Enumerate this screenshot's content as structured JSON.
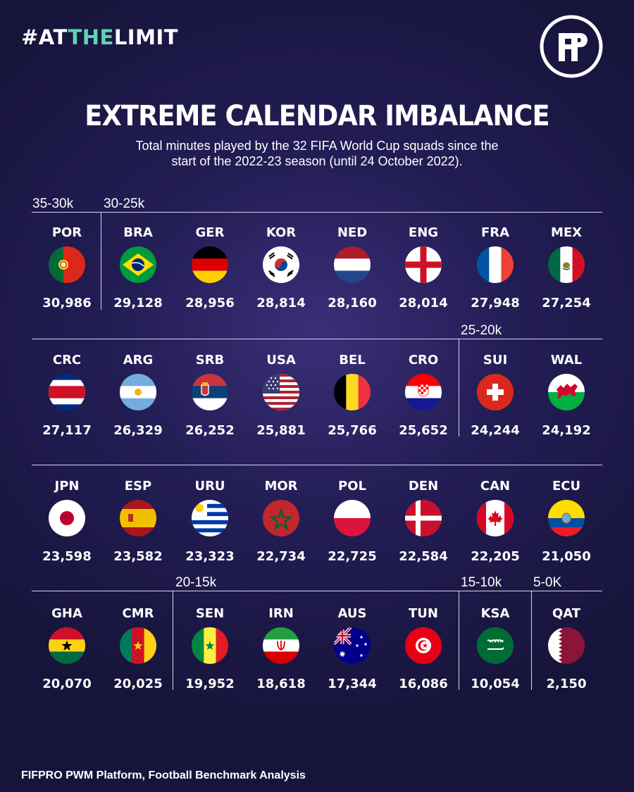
{
  "header": {
    "hashtag_prefix": "#AT",
    "hashtag_accent": "THE",
    "hashtag_suffix": "LIMIT",
    "logo_text": "FF"
  },
  "title": "EXTREME CALENDAR IMBALANCE",
  "subtitle_line1": "Total minutes played by the 32 FIFA World Cup squads since the",
  "subtitle_line2": "start of the 2022-23 season (until 24 October 2022).",
  "source": "FIFPRO PWM Platform, Football Benchmark Analysis",
  "colors": {
    "accent": "#5fd3b3",
    "background": "#231d55",
    "text": "#ffffff"
  },
  "chart_data": {
    "type": "table",
    "title": "EXTREME CALENDAR IMBALANCE",
    "ranges": [
      "35-30k",
      "30-25k",
      "25-20k",
      "20-15k",
      "15-10k",
      "5-0K"
    ],
    "teams": [
      {
        "code": "POR",
        "minutes": 30986,
        "label": "30,986",
        "range": "35-30k"
      },
      {
        "code": "BRA",
        "minutes": 29128,
        "label": "29,128",
        "range": "30-25k"
      },
      {
        "code": "GER",
        "minutes": 28956,
        "label": "28,956",
        "range": "30-25k"
      },
      {
        "code": "KOR",
        "minutes": 28814,
        "label": "28,814",
        "range": "30-25k"
      },
      {
        "code": "NED",
        "minutes": 28160,
        "label": "28,160",
        "range": "30-25k"
      },
      {
        "code": "ENG",
        "minutes": 28014,
        "label": "28,014",
        "range": "30-25k"
      },
      {
        "code": "FRA",
        "minutes": 27948,
        "label": "27,948",
        "range": "30-25k"
      },
      {
        "code": "MEX",
        "minutes": 27254,
        "label": "27,254",
        "range": "30-25k"
      },
      {
        "code": "CRC",
        "minutes": 27117,
        "label": "27,117",
        "range": "30-25k"
      },
      {
        "code": "ARG",
        "minutes": 26329,
        "label": "26,329",
        "range": "30-25k"
      },
      {
        "code": "SRB",
        "minutes": 26252,
        "label": "26,252",
        "range": "30-25k"
      },
      {
        "code": "USA",
        "minutes": 25881,
        "label": "25,881",
        "range": "30-25k"
      },
      {
        "code": "BEL",
        "minutes": 25766,
        "label": "25,766",
        "range": "30-25k"
      },
      {
        "code": "CRO",
        "minutes": 25652,
        "label": "25,652",
        "range": "30-25k"
      },
      {
        "code": "SUI",
        "minutes": 24244,
        "label": "24,244",
        "range": "25-20k"
      },
      {
        "code": "WAL",
        "minutes": 24192,
        "label": "24,192",
        "range": "25-20k"
      },
      {
        "code": "JPN",
        "minutes": 23598,
        "label": "23,598",
        "range": "25-20k"
      },
      {
        "code": "ESP",
        "minutes": 23582,
        "label": "23,582",
        "range": "25-20k"
      },
      {
        "code": "URU",
        "minutes": 23323,
        "label": "23,323",
        "range": "25-20k"
      },
      {
        "code": "MOR",
        "minutes": 22734,
        "label": "22,734",
        "range": "25-20k"
      },
      {
        "code": "POL",
        "minutes": 22725,
        "label": "22,725",
        "range": "25-20k"
      },
      {
        "code": "DEN",
        "minutes": 22584,
        "label": "22,584",
        "range": "25-20k"
      },
      {
        "code": "CAN",
        "minutes": 22205,
        "label": "22,205",
        "range": "25-20k"
      },
      {
        "code": "ECU",
        "minutes": 21050,
        "label": "21,050",
        "range": "25-20k"
      },
      {
        "code": "GHA",
        "minutes": 20070,
        "label": "20,070",
        "range": "25-20k"
      },
      {
        "code": "CMR",
        "minutes": 20025,
        "label": "20,025",
        "range": "25-20k"
      },
      {
        "code": "SEN",
        "minutes": 19952,
        "label": "19,952",
        "range": "20-15k"
      },
      {
        "code": "IRN",
        "minutes": 18618,
        "label": "18,618",
        "range": "20-15k"
      },
      {
        "code": "AUS",
        "minutes": 17344,
        "label": "17,344",
        "range": "20-15k"
      },
      {
        "code": "TUN",
        "minutes": 16086,
        "label": "16,086",
        "range": "20-15k"
      },
      {
        "code": "KSA",
        "minutes": 10054,
        "label": "10,054",
        "range": "15-10k"
      },
      {
        "code": "QAT",
        "minutes": 2150,
        "label": "2,150",
        "range": "5-0K"
      }
    ]
  }
}
